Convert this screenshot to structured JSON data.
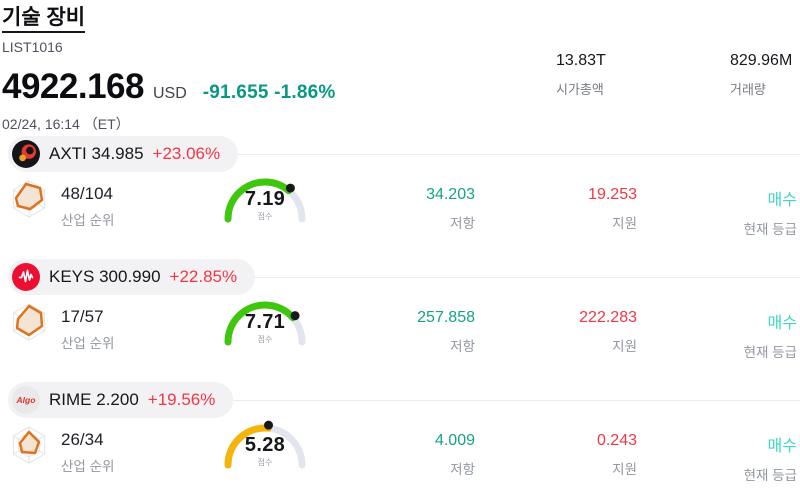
{
  "header": {
    "title": "기술 장비",
    "subtitle": "LIST1016",
    "price": "4922.168",
    "currency": "USD",
    "change": "-91.655 -1.86%",
    "datetime": "02/24, 16:14 （ET）",
    "market_cap": {
      "value": "13.83T",
      "label": "시가총액"
    },
    "volume": {
      "value": "829.96M",
      "label": "거래량"
    }
  },
  "labels": {
    "industry_rank": "산업 순위",
    "score": "점수",
    "resistance": "저항",
    "support": "지원",
    "current_rating": "현재 등급"
  },
  "stocks": [
    {
      "ticker": "AXTI",
      "price": "34.985",
      "change": "+23.06%",
      "rank": "48/104",
      "score": "7.19",
      "score_value": 7.19,
      "gauge_color": "#3ec70c",
      "resistance": "34.203",
      "support": "19.253",
      "rating": "매수"
    },
    {
      "ticker": "KEYS",
      "price": "300.990",
      "change": "+22.85%",
      "rank": "17/57",
      "score": "7.71",
      "score_value": 7.71,
      "gauge_color": "#3ec70c",
      "resistance": "257.858",
      "support": "222.283",
      "rating": "매수"
    },
    {
      "ticker": "RIME",
      "price": "2.200",
      "change": "+19.56%",
      "logo_text": "Algo",
      "rank": "26/34",
      "score": "5.28",
      "score_value": 5.28,
      "gauge_color": "#f5b40a",
      "resistance": "4.009",
      "support": "0.243",
      "rating": "매수"
    }
  ],
  "colors": {
    "change_teal": "#089981",
    "resistance_teal": "#14a385",
    "red": "#f23645",
    "rating_turquoise": "#3ed6c4",
    "gauge_track": "#e2e4ee"
  }
}
